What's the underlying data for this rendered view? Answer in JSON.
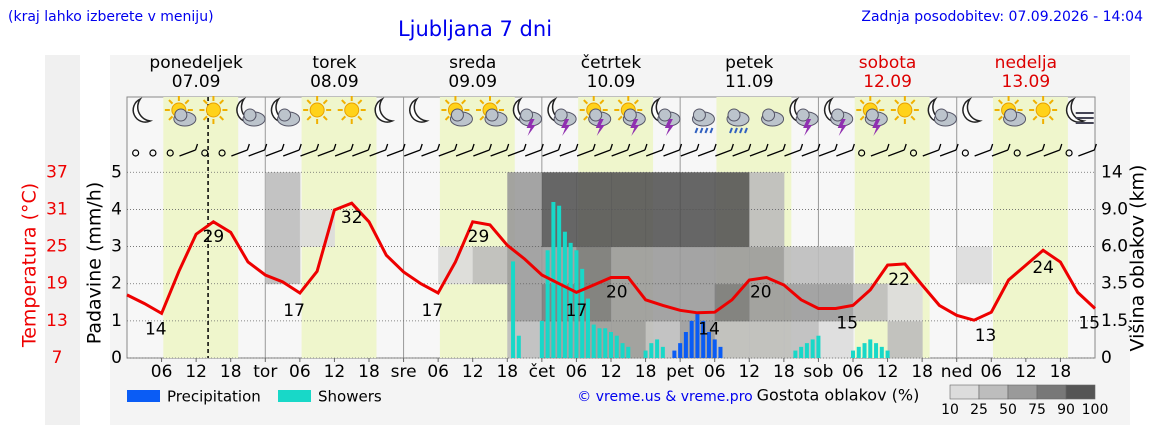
{
  "header": {
    "hint": "(kraj lahko izberete v meniju)",
    "title": "Ljubljana 7 dni",
    "updated": "Zadnja posodobitev: 07.09.2026 - 14:04"
  },
  "chart_data": {
    "type": "meteogram",
    "days": [
      {
        "name": "ponedeljek",
        "date": "07.09",
        "color": "#000000"
      },
      {
        "name": "torek",
        "date": "08.09",
        "color": "#000000"
      },
      {
        "name": "sreda",
        "date": "09.09",
        "color": "#000000"
      },
      {
        "name": "četrtek",
        "date": "10.09",
        "color": "#000000"
      },
      {
        "name": "petek",
        "date": "11.09",
        "color": "#000000"
      },
      {
        "name": "sobota",
        "date": "12.09",
        "color": "#dd0000"
      },
      {
        "name": "nedelja",
        "date": "13.09",
        "color": "#dd0000"
      }
    ],
    "xlim": [
      0,
      168
    ],
    "xticks": [
      {
        "value": 6,
        "label": "06"
      },
      {
        "value": 12,
        "label": "12"
      },
      {
        "value": 18,
        "label": "18"
      },
      {
        "value": 24,
        "label": "tor"
      },
      {
        "value": 30,
        "label": "06"
      },
      {
        "value": 36,
        "label": "12"
      },
      {
        "value": 42,
        "label": "18"
      },
      {
        "value": 48,
        "label": "sre"
      },
      {
        "value": 54,
        "label": "06"
      },
      {
        "value": 60,
        "label": "12"
      },
      {
        "value": 66,
        "label": "18"
      },
      {
        "value": 72,
        "label": "čet"
      },
      {
        "value": 78,
        "label": "06"
      },
      {
        "value": 84,
        "label": "12"
      },
      {
        "value": 90,
        "label": "18"
      },
      {
        "value": 96,
        "label": "pet"
      },
      {
        "value": 102,
        "label": "06"
      },
      {
        "value": 108,
        "label": "12"
      },
      {
        "value": 114,
        "label": "18"
      },
      {
        "value": 120,
        "label": "sob"
      },
      {
        "value": 126,
        "label": "06"
      },
      {
        "value": 132,
        "label": "12"
      },
      {
        "value": 138,
        "label": "18"
      },
      {
        "value": 144,
        "label": "ned"
      },
      {
        "value": 150,
        "label": "06"
      },
      {
        "value": 156,
        "label": "12"
      },
      {
        "value": 162,
        "label": "18"
      }
    ],
    "ylim": [
      0,
      5.25
    ],
    "yticks": [
      0,
      1,
      2,
      3,
      4,
      5
    ],
    "ylabel": "Padavine (mm/h)",
    "grid": true,
    "temp_lim": [
      7,
      38.5
    ],
    "temp_ticks": [
      7,
      13,
      19,
      25,
      31,
      37
    ],
    "temp_label": "Temperatura (°C)",
    "y2ticks": [
      0,
      1.5,
      3.5,
      {
        "value": 6,
        "label": "6.0"
      },
      {
        "value": 9,
        "label": "9.0"
      },
      14
    ],
    "y2label": "Višina oblakov (km)",
    "temperature": {
      "color": "#ee0000",
      "x": [
        0,
        3,
        6,
        9,
        12,
        15,
        18,
        21,
        24,
        27,
        30,
        33,
        36,
        39,
        42,
        45,
        48,
        51,
        54,
        57,
        60,
        63,
        66,
        69,
        72,
        75,
        78,
        81,
        84,
        87,
        90,
        93,
        96,
        99,
        102,
        105,
        108,
        111,
        114,
        117,
        120,
        123,
        126,
        129,
        132,
        135,
        138,
        141,
        144,
        147,
        150,
        153,
        156,
        159,
        162,
        165,
        168
      ],
      "values": [
        17.2,
        15.8,
        14.2,
        21,
        27,
        29,
        27.3,
        22.5,
        20.4,
        19.3,
        17.5,
        21,
        30.9,
        32,
        29,
        23.6,
        20.9,
        19,
        17.5,
        22.5,
        29,
        28.5,
        25.2,
        23,
        20.4,
        19,
        17.6,
        18.8,
        20,
        20,
        16.4,
        15.5,
        14.7,
        14.3,
        14.4,
        16.4,
        19.6,
        20,
        18.8,
        16.4,
        15,
        15,
        15.5,
        18,
        22,
        22.2,
        18.8,
        15.5,
        13.9,
        13.1,
        14.4,
        19.6,
        22,
        24.4,
        22.5,
        17.6,
        15
      ]
    },
    "temp_labels": {
      "x": [
        5,
        15,
        29,
        39,
        53,
        61,
        78,
        85,
        101,
        110,
        125,
        134,
        149,
        159,
        167
      ],
      "values": [
        14,
        29,
        17,
        32,
        17,
        29,
        17,
        20,
        14,
        20,
        15,
        22,
        13,
        24,
        15
      ]
    },
    "series": [
      {
        "name": "Precipitation",
        "color": "#0a5cf5",
        "x": [
          95,
          96,
          97,
          98,
          99,
          100,
          101,
          102,
          103
        ],
        "values": [
          0.2,
          0.4,
          0.7,
          1.0,
          1.2,
          1.0,
          0.7,
          0.5,
          0.3
        ]
      },
      {
        "name": "Showers",
        "color": "#18d8c8",
        "x": [
          67,
          68,
          72,
          73,
          74,
          75,
          76,
          77,
          78,
          79,
          80,
          81,
          82,
          83,
          84,
          85,
          86,
          87,
          90,
          91,
          92,
          93,
          116,
          117,
          118,
          119,
          120,
          126,
          127,
          128,
          129,
          130,
          131,
          132
        ],
        "values": [
          2.6,
          0.6,
          1.0,
          2.9,
          4.2,
          4.1,
          3.4,
          3.1,
          2.9,
          2.4,
          1.6,
          0.9,
          0.8,
          0.8,
          0.7,
          0.6,
          0.4,
          0.3,
          0.2,
          0.4,
          0.5,
          0.3,
          0.2,
          0.3,
          0.4,
          0.5,
          0.6,
          0.2,
          0.3,
          0.4,
          0.5,
          0.4,
          0.3,
          0.2
        ]
      }
    ],
    "cloud_density": {
      "label": "Gostota oblakov (%)",
      "scale": [
        10,
        25,
        50,
        75,
        90,
        100
      ],
      "colors": [
        "#dcdcdc",
        "#bdbdbd",
        "#9a9a9a",
        "#787878",
        "#555555"
      ],
      "rows": [
        [
          0,
          0,
          0,
          0,
          0,
          0,
          0,
          0,
          0,
          0,
          0,
          40,
          60,
          70,
          60,
          40,
          50,
          40,
          30,
          40,
          20,
          0,
          30,
          0,
          0,
          0,
          0,
          0
        ],
        [
          0,
          0,
          0,
          0,
          0,
          0,
          0,
          0,
          0,
          0,
          0,
          60,
          75,
          80,
          60,
          60,
          70,
          75,
          70,
          60,
          50,
          40,
          20,
          0,
          0,
          0,
          0,
          0
        ],
        [
          0,
          0,
          0,
          0,
          40,
          0,
          0,
          0,
          0,
          20,
          40,
          60,
          70,
          75,
          70,
          50,
          60,
          70,
          50,
          30,
          30,
          0,
          0,
          0,
          20,
          0,
          0,
          0
        ],
        [
          0,
          0,
          0,
          0,
          30,
          20,
          0,
          0,
          0,
          0,
          0,
          50,
          95,
          95,
          95,
          95,
          90,
          90,
          30,
          0,
          0,
          0,
          0,
          0,
          0,
          0,
          0,
          0
        ],
        [
          0,
          0,
          0,
          0,
          30,
          0,
          0,
          0,
          0,
          0,
          0,
          60,
          90,
          95,
          95,
          95,
          90,
          95,
          40,
          0,
          0,
          0,
          0,
          0,
          0,
          0,
          0,
          0
        ]
      ]
    },
    "credit": "© vreme.us & vreme.pro"
  }
}
